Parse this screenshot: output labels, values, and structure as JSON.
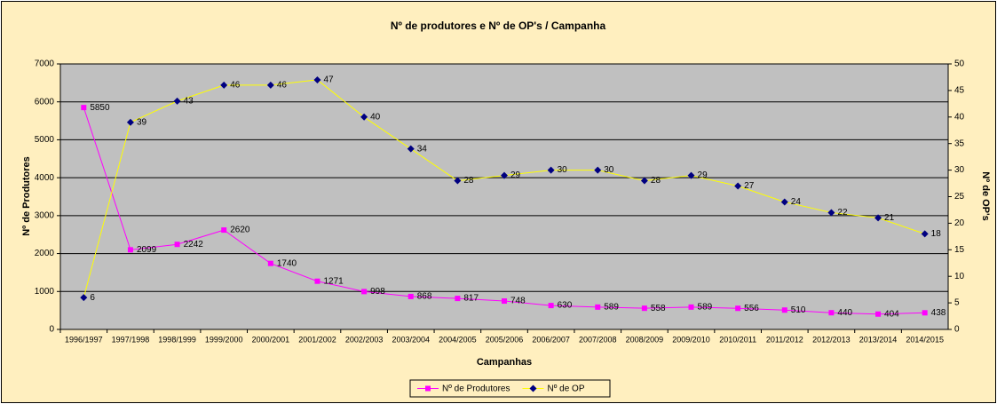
{
  "chart_data": {
    "type": "line",
    "title": "Nº de produtores e Nº de OP's / Campanha",
    "x_label": "Campanhas",
    "y_label": "Nº de Produtores",
    "y2_label": "Nº de OP's",
    "categories": [
      "1996/1997",
      "1997/1998",
      "1998/1999",
      "1999/2000",
      "2000/2001",
      "2001/2002",
      "2002/2003",
      "2003/2004",
      "2004/2005",
      "2005/2006",
      "2006/2007",
      "2007/2008",
      "2008/2009",
      "2009/2010",
      "2010/2011",
      "2011/2012",
      "2012/2013",
      "2013/2014",
      "2014/2015"
    ],
    "series": [
      {
        "name": "Nº de Produtores",
        "color": "#ff00ff",
        "marker": "square",
        "marker_color": "#ff00ff",
        "values": [
          5850,
          2099,
          2242,
          2620,
          1740,
          1271,
          998,
          868,
          817,
          748,
          630,
          589,
          558,
          589,
          556,
          510,
          440,
          404,
          438
        ]
      },
      {
        "name": "Nº de OP",
        "color": "#ffff00",
        "marker": "diamond",
        "marker_color": "#000080",
        "axis": "y2",
        "values": [
          6,
          39,
          43,
          46,
          46,
          47,
          40,
          34,
          28,
          29,
          30,
          30,
          28,
          29,
          27,
          24,
          22,
          21,
          18
        ]
      }
    ],
    "ylim": [
      0,
      7000
    ],
    "yticks": [
      0,
      1000,
      2000,
      3000,
      4000,
      5000,
      6000,
      7000
    ],
    "y2lim": [
      0,
      50
    ],
    "y2ticks": [
      0,
      5,
      10,
      15,
      20,
      25,
      30,
      35,
      40,
      45,
      50
    ],
    "grid": true,
    "legend": "bottom"
  }
}
